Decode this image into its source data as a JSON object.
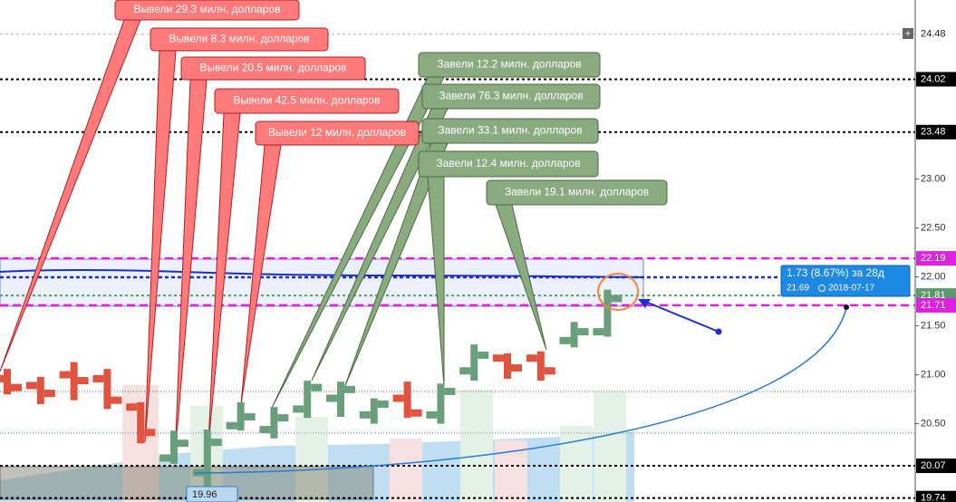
{
  "chart_data": {
    "type": "candlestick",
    "ylim": [
      19.7,
      24.83
    ],
    "yticks": [
      {
        "value": 23,
        "label": "23.00"
      },
      {
        "value": 22.5,
        "label": "22.50"
      },
      {
        "value": 22,
        "label": "22.00"
      },
      {
        "value": 21.5,
        "label": "21.50"
      },
      {
        "value": 21,
        "label": "21.00"
      },
      {
        "value": 20.5,
        "label": "20.50"
      }
    ],
    "levels": [
      {
        "value": 24.48,
        "color": "#888888"
      },
      {
        "value": 24.02,
        "color": "#000000"
      },
      {
        "value": 23.48,
        "color": "#000000"
      },
      {
        "value": 22.19,
        "color": "#e020e0"
      },
      {
        "value": 21.81,
        "color": "#5a9a6a"
      },
      {
        "value": 21.71,
        "color": "#e020e0"
      },
      {
        "value": 20.07,
        "color": "#000000"
      },
      {
        "value": 19.74,
        "color": "#000000"
      }
    ],
    "up_color": "#6a9f7c",
    "down_color": "#e0533f",
    "open": [
      20.96,
      20.89,
      21.0,
      20.96,
      20.67,
      20.15,
      20.0,
      20.48,
      20.44,
      20.65,
      20.76,
      20.59,
      20.76,
      20.59,
      21.04,
      21.17,
      21.17,
      21.35,
      21.44
    ],
    "high": [
      21.06,
      20.98,
      21.13,
      21.06,
      20.72,
      20.43,
      20.44,
      20.72,
      20.67,
      20.94,
      20.93,
      20.76,
      20.93,
      20.91,
      21.31,
      21.22,
      21.24,
      21.54,
      21.87
    ],
    "low": [
      20.8,
      20.7,
      20.74,
      20.65,
      20.3,
      20.09,
      19.83,
      20.43,
      20.35,
      20.56,
      20.57,
      20.5,
      20.56,
      20.5,
      20.94,
      20.96,
      20.94,
      21.28,
      21.39
    ],
    "close": [
      20.87,
      20.81,
      20.94,
      20.74,
      20.41,
      20.3,
      20.31,
      20.57,
      20.56,
      20.87,
      20.85,
      20.7,
      20.61,
      20.83,
      21.2,
      21.07,
      21.04,
      21.44,
      21.78
    ],
    "callouts": [
      {
        "text": "Вывели 29.3 милн. долларов",
        "color": "#ff7b7b"
      },
      {
        "text": "Вывели 8.3 милн. долларов",
        "color": "#ff7b7b"
      },
      {
        "text": "Вывели 20.5 милн. долларов",
        "color": "#ff7b7b"
      },
      {
        "text": "Вывели 42.5 милн. долларов",
        "color": "#ff7b7b"
      },
      {
        "text": "Вывели 12 милн. долларов",
        "color": "#ff7b7b"
      },
      {
        "text": "Завели 12.2 милн. долларов",
        "color": "#8aaa80"
      },
      {
        "text": "Завели 76.3 милн. долларов",
        "color": "#8aaa80"
      },
      {
        "text": "Завели 33.1 милн. долларов",
        "color": "#8aaa80"
      },
      {
        "text": "Завели 12.4 милн. долларов",
        "color": "#8aaa80"
      },
      {
        "text": "Завели 19.1 милн. долларов",
        "color": "#8aaa80"
      }
    ],
    "measure": {
      "text": "1.73 (8.67%) за 28д",
      "price": 21.69,
      "date": "2018-07-17"
    },
    "start_label": 19.96
  }
}
